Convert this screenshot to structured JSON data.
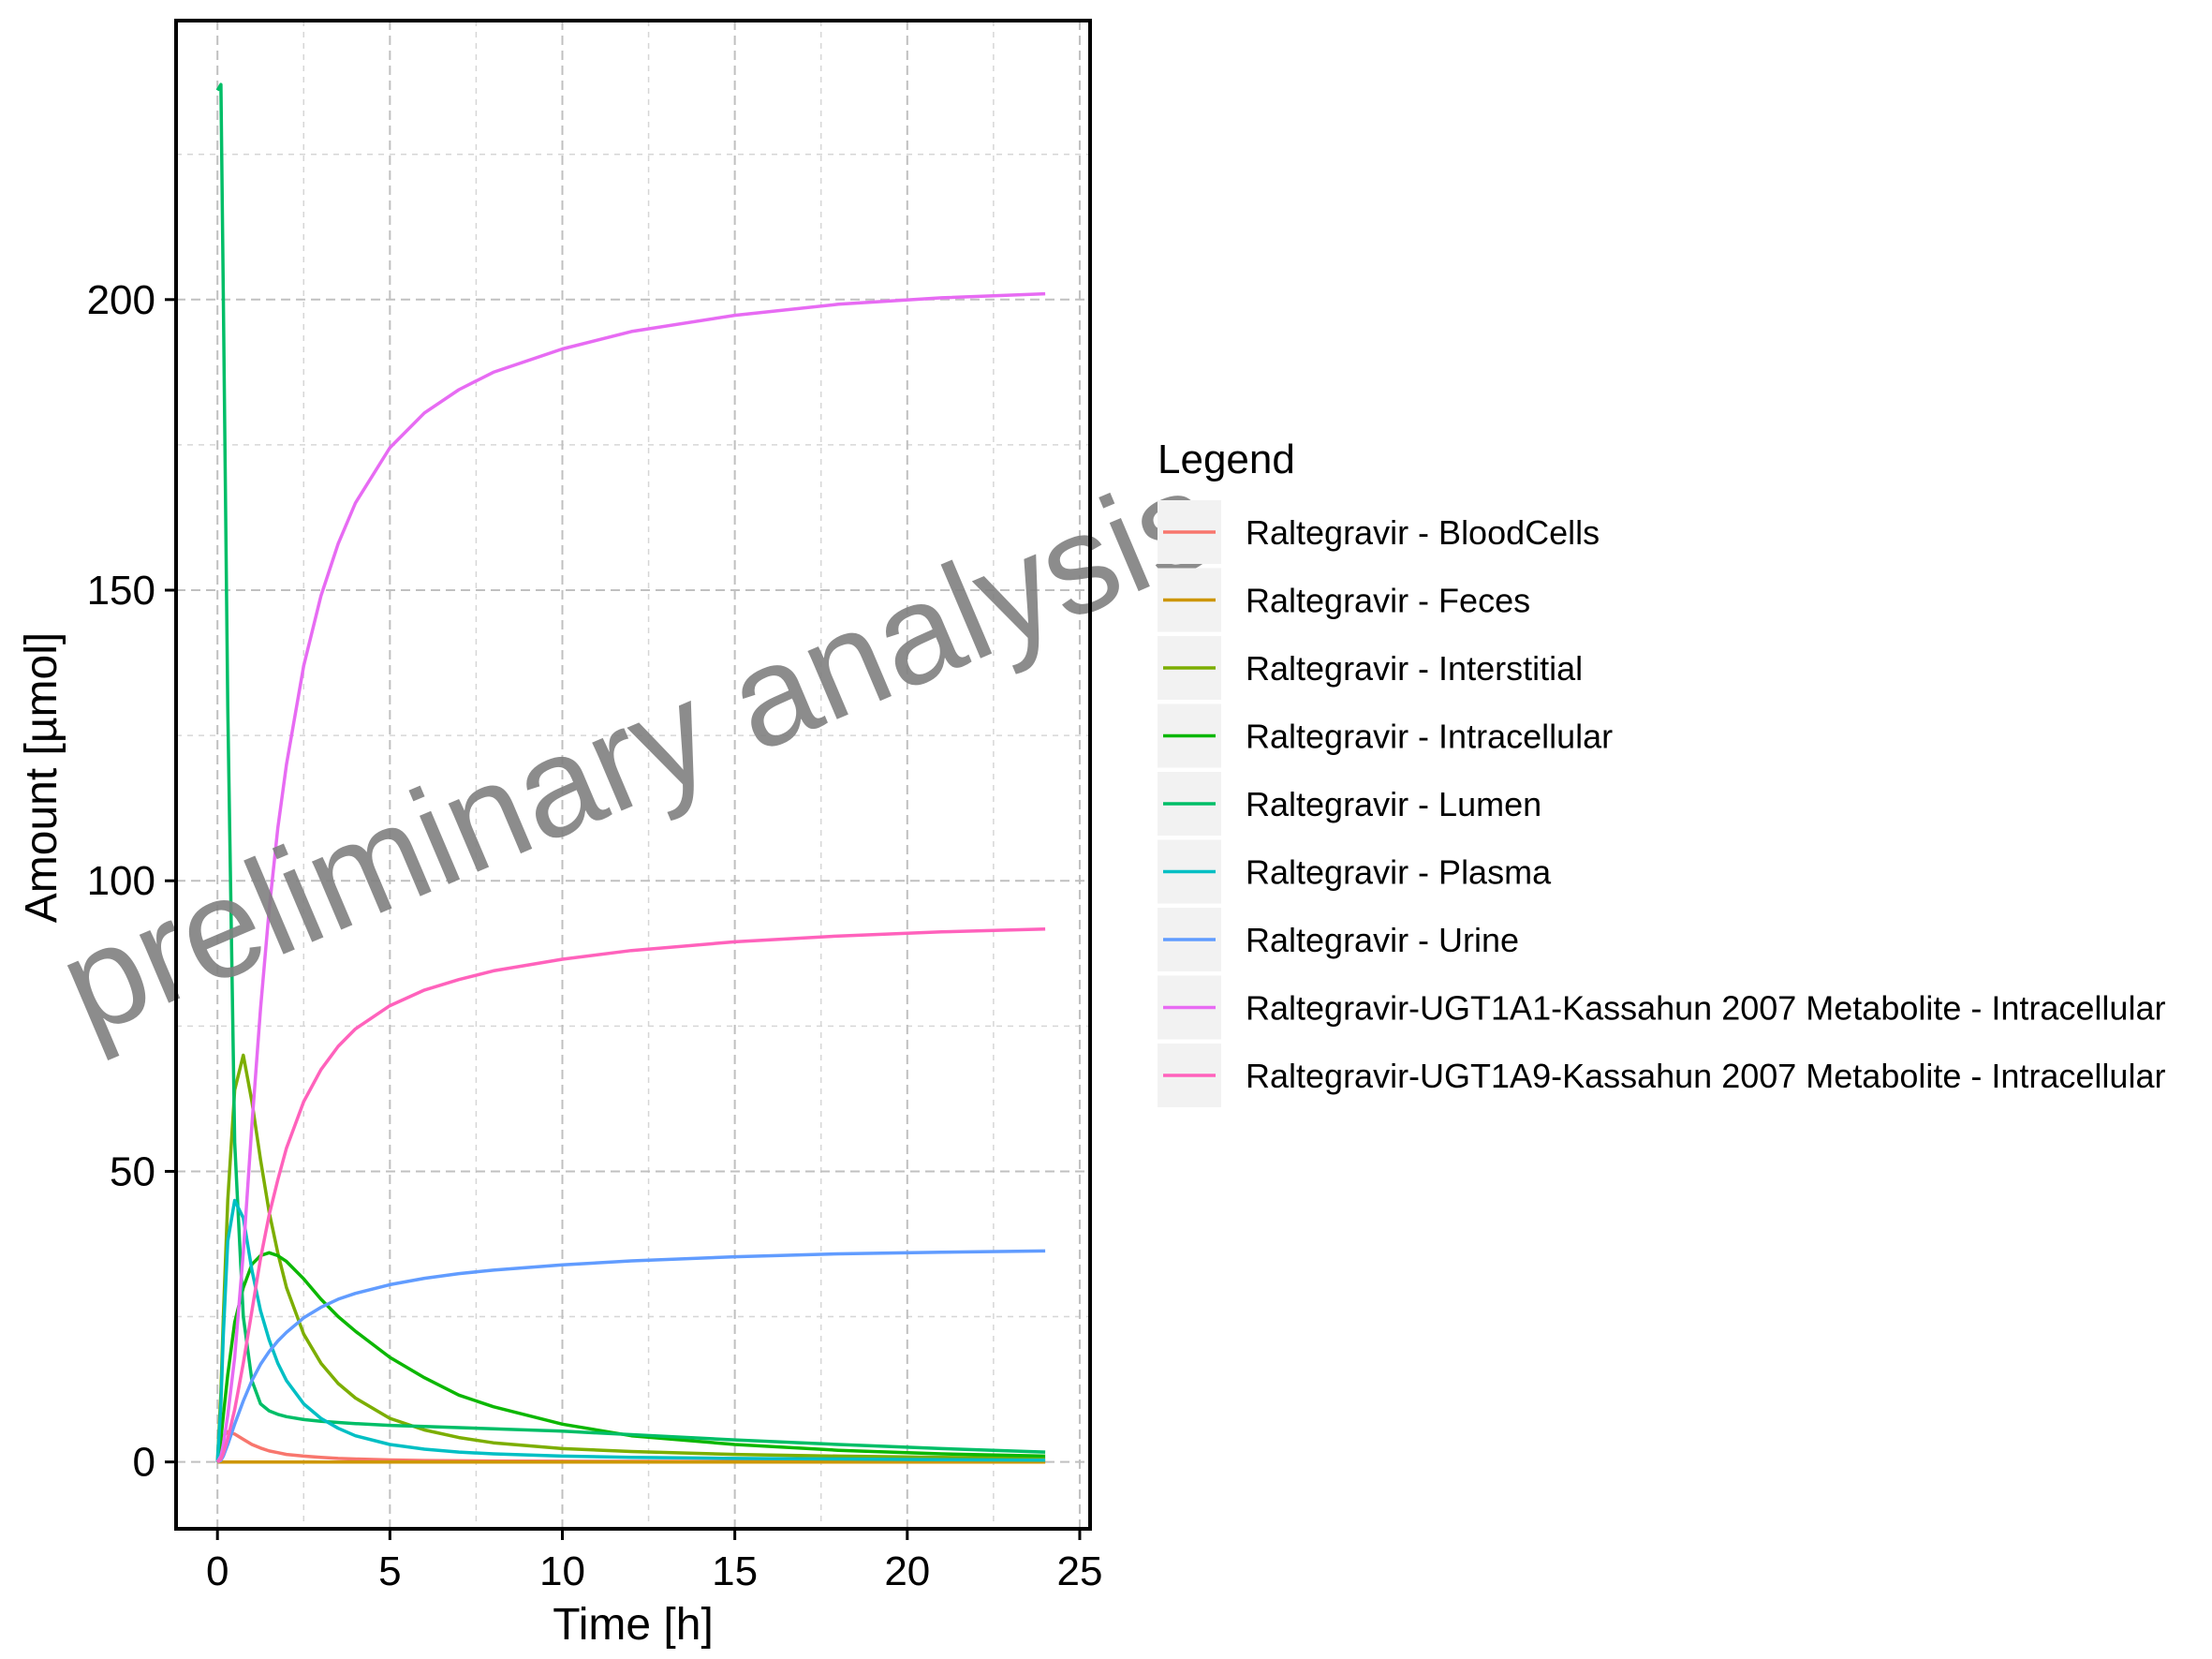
{
  "chart_data": {
    "type": "line",
    "title": "",
    "xlabel": "Time [h]",
    "ylabel": "Amount [µmol]",
    "xlim": [
      -1.2,
      25.3
    ],
    "ylim": [
      -11.5,
      248
    ],
    "xticks": [
      0,
      5,
      10,
      15,
      20,
      25
    ],
    "xtick_labels": [
      "0",
      "5",
      "10",
      "15",
      "20",
      "25"
    ],
    "yticks": [
      0,
      50,
      100,
      150,
      200
    ],
    "ytick_labels": [
      "0",
      "50",
      "100",
      "150",
      "200"
    ],
    "grid": true,
    "legend_title": "Legend",
    "legend_position": "right",
    "watermark": "preliminary analysis",
    "x": [
      0,
      0.1,
      0.17,
      0.3,
      0.5,
      0.75,
      1,
      1.25,
      1.5,
      1.75,
      2,
      2.5,
      3,
      3.5,
      4,
      5,
      6,
      7,
      8,
      10,
      12,
      15,
      18,
      21,
      24
    ],
    "series": [
      {
        "name": "Raltegravir - BloodCells",
        "color": "#F8766D",
        "values": [
          0,
          3.0,
          4.5,
          5.2,
          4.8,
          3.9,
          3.0,
          2.4,
          1.9,
          1.6,
          1.3,
          1.0,
          0.8,
          0.6,
          0.5,
          0.35,
          0.25,
          0.2,
          0.17,
          0.12,
          0.1,
          0.07,
          0.05,
          0.04,
          0.03
        ]
      },
      {
        "name": "Raltegravir - Feces",
        "color": "#CD9600",
        "values": [
          0,
          0,
          0,
          0,
          0,
          0,
          0,
          0,
          0,
          0,
          0,
          0,
          0,
          0,
          0,
          0,
          0,
          0,
          0,
          0,
          0,
          0,
          0,
          0,
          0
        ]
      },
      {
        "name": "Raltegravir - Interstitial",
        "color": "#7CAE00",
        "values": [
          0,
          12,
          25,
          45,
          64,
          70,
          62,
          52,
          43,
          36,
          30,
          22,
          17,
          13.5,
          11,
          7.5,
          5.5,
          4.2,
          3.3,
          2.3,
          1.8,
          1.3,
          1.0,
          0.8,
          0.6
        ]
      },
      {
        "name": "Raltegravir - Intracellular",
        "color": "#0CB702",
        "values": [
          0,
          4,
          8,
          15,
          24,
          30,
          34,
          35.5,
          36,
          35.5,
          34.5,
          31.5,
          28,
          25,
          22.5,
          18,
          14.5,
          11.5,
          9.5,
          6.5,
          4.5,
          3,
          2,
          1.4,
          1.0
        ]
      },
      {
        "name": "Raltegravir - Lumen",
        "color": "#00BE67",
        "values": [
          236,
          237,
          200,
          130,
          55,
          25,
          14,
          10,
          8.8,
          8.2,
          7.8,
          7.3,
          7.0,
          6.8,
          6.6,
          6.3,
          6.1,
          5.9,
          5.7,
          5.3,
          4.7,
          3.8,
          3.0,
          2.3,
          1.7
        ]
      },
      {
        "name": "Raltegravir - Plasma",
        "color": "#00BFC4",
        "values": [
          0,
          10,
          22,
          38,
          45,
          42,
          33,
          26,
          21,
          17,
          14,
          10,
          7.5,
          5.8,
          4.5,
          3.0,
          2.2,
          1.7,
          1.4,
          1.0,
          0.8,
          0.6,
          0.5,
          0.4,
          0.3
        ]
      },
      {
        "name": "Raltegravir - Urine",
        "color": "#619CFF",
        "values": [
          0,
          0.3,
          1.0,
          3.0,
          6.5,
          10.5,
          14,
          16.8,
          19,
          20.8,
          22.3,
          24.8,
          26.6,
          28,
          29,
          30.5,
          31.6,
          32.4,
          33,
          33.9,
          34.6,
          35.3,
          35.8,
          36.1,
          36.3
        ]
      },
      {
        "name": "Raltegravir-UGT1A1-Kassahun 2007 Metabolite - Intracellular",
        "color": "#E76BF3",
        "values": [
          0,
          1,
          3,
          8,
          18,
          36,
          58,
          78,
          95,
          109,
          120,
          137,
          149,
          158,
          165,
          174.5,
          180.5,
          184.5,
          187.5,
          191.5,
          194.5,
          197.3,
          199.2,
          200.3,
          201
        ]
      },
      {
        "name": "Raltegravir-UGT1A9-Kassahun 2007 Metabolite - Intracellular",
        "color": "#FF62BC",
        "values": [
          0,
          0.5,
          1.5,
          4,
          9,
          17,
          26,
          35,
          42.5,
          48.5,
          54,
          62,
          67.5,
          71.5,
          74.5,
          78.5,
          81.2,
          83,
          84.5,
          86.5,
          88,
          89.5,
          90.5,
          91.2,
          91.7
        ]
      }
    ]
  }
}
